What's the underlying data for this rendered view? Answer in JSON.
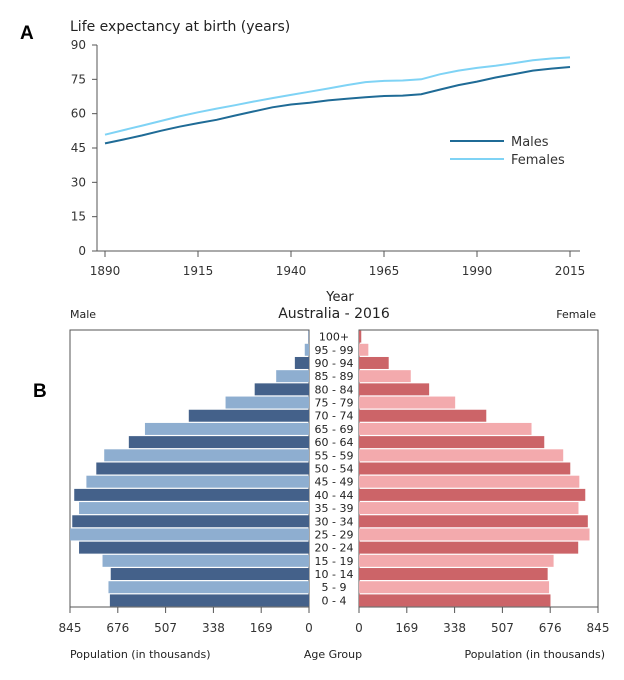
{
  "chart_data": [
    {
      "panel_label": "A",
      "type": "line",
      "ylabel": "Life expectancy at birth (years)",
      "xlabel": "Year",
      "xlim": [
        1890,
        2015
      ],
      "ylim": [
        0,
        90
      ],
      "xticks": [
        1890,
        1915,
        1940,
        1965,
        1990,
        2015
      ],
      "yticks": [
        0,
        15,
        30,
        45,
        60,
        75,
        90
      ],
      "legend_position": "right",
      "grid": false,
      "series": [
        {
          "name": "Males",
          "color": "#1f6b96",
          "x": [
            1890,
            1895,
            1900,
            1905,
            1910,
            1915,
            1920,
            1925,
            1930,
            1935,
            1940,
            1945,
            1950,
            1955,
            1960,
            1965,
            1970,
            1975,
            1980,
            1985,
            1990,
            1995,
            2000,
            2005,
            2010,
            2015
          ],
          "y": [
            47,
            48.7,
            50.5,
            52.5,
            54.3,
            55.9,
            57.3,
            59.2,
            61,
            62.8,
            64,
            64.8,
            65.8,
            66.5,
            67.2,
            67.7,
            67.9,
            68.5,
            70.5,
            72.5,
            74,
            75.8,
            77.3,
            78.8,
            79.7,
            80.4
          ]
        },
        {
          "name": "Females",
          "color": "#7fd3f5",
          "x": [
            1890,
            1895,
            1900,
            1905,
            1910,
            1915,
            1920,
            1925,
            1930,
            1935,
            1940,
            1945,
            1950,
            1955,
            1960,
            1965,
            1970,
            1975,
            1980,
            1985,
            1990,
            1995,
            2000,
            2005,
            2010,
            2015
          ],
          "y": [
            50.8,
            52.8,
            54.8,
            56.8,
            58.8,
            60.6,
            62.2,
            63.7,
            65.3,
            66.8,
            68.2,
            69.6,
            71,
            72.5,
            73.8,
            74.3,
            74.5,
            75,
            77.2,
            78.8,
            80,
            80.9,
            82.1,
            83.3,
            84.1,
            84.6
          ]
        }
      ]
    },
    {
      "panel_label": "B",
      "type": "bar",
      "orientation": "horizontal",
      "title": "Australia - 2016",
      "left_label": "Male",
      "right_label": "Female",
      "center_label": "Age Group",
      "xlabel_left": "Population (in thousands)",
      "xlabel_right": "Population (in thousands)",
      "xlim": [
        0,
        845
      ],
      "xticks": [
        845,
        676,
        507,
        338,
        169,
        0
      ],
      "xticks_right": [
        0,
        169,
        338,
        507,
        676,
        845
      ],
      "categories": [
        "100+",
        "95 - 99",
        "90 - 94",
        "85 - 89",
        "80 - 84",
        "75 - 79",
        "70 - 74",
        "65 - 69",
        "60 - 64",
        "55 - 59",
        "50 - 54",
        "45 - 49",
        "40 - 44",
        "35 - 39",
        "30 - 34",
        "25 - 29",
        "20 - 24",
        "15 - 19",
        "10 - 14",
        "5 - 9",
        "0 - 4"
      ],
      "colors": {
        "male_dark": "#44618a",
        "male_light": "#8eaed0",
        "female_dark": "#cc6468",
        "female_light": "#f3aaad"
      },
      "series": [
        {
          "name": "Male",
          "values": [
            2,
            15,
            50,
            116,
            192,
            295,
            425,
            580,
            637,
            724,
            752,
            787,
            830,
            813,
            837,
            845,
            813,
            730,
            701,
            709,
            704
          ]
        },
        {
          "name": "Female",
          "values": [
            8,
            33,
            105,
            183,
            248,
            340,
            450,
            610,
            655,
            722,
            747,
            779,
            800,
            776,
            809,
            815,
            775,
            688,
            667,
            672,
            677
          ]
        }
      ]
    }
  ]
}
